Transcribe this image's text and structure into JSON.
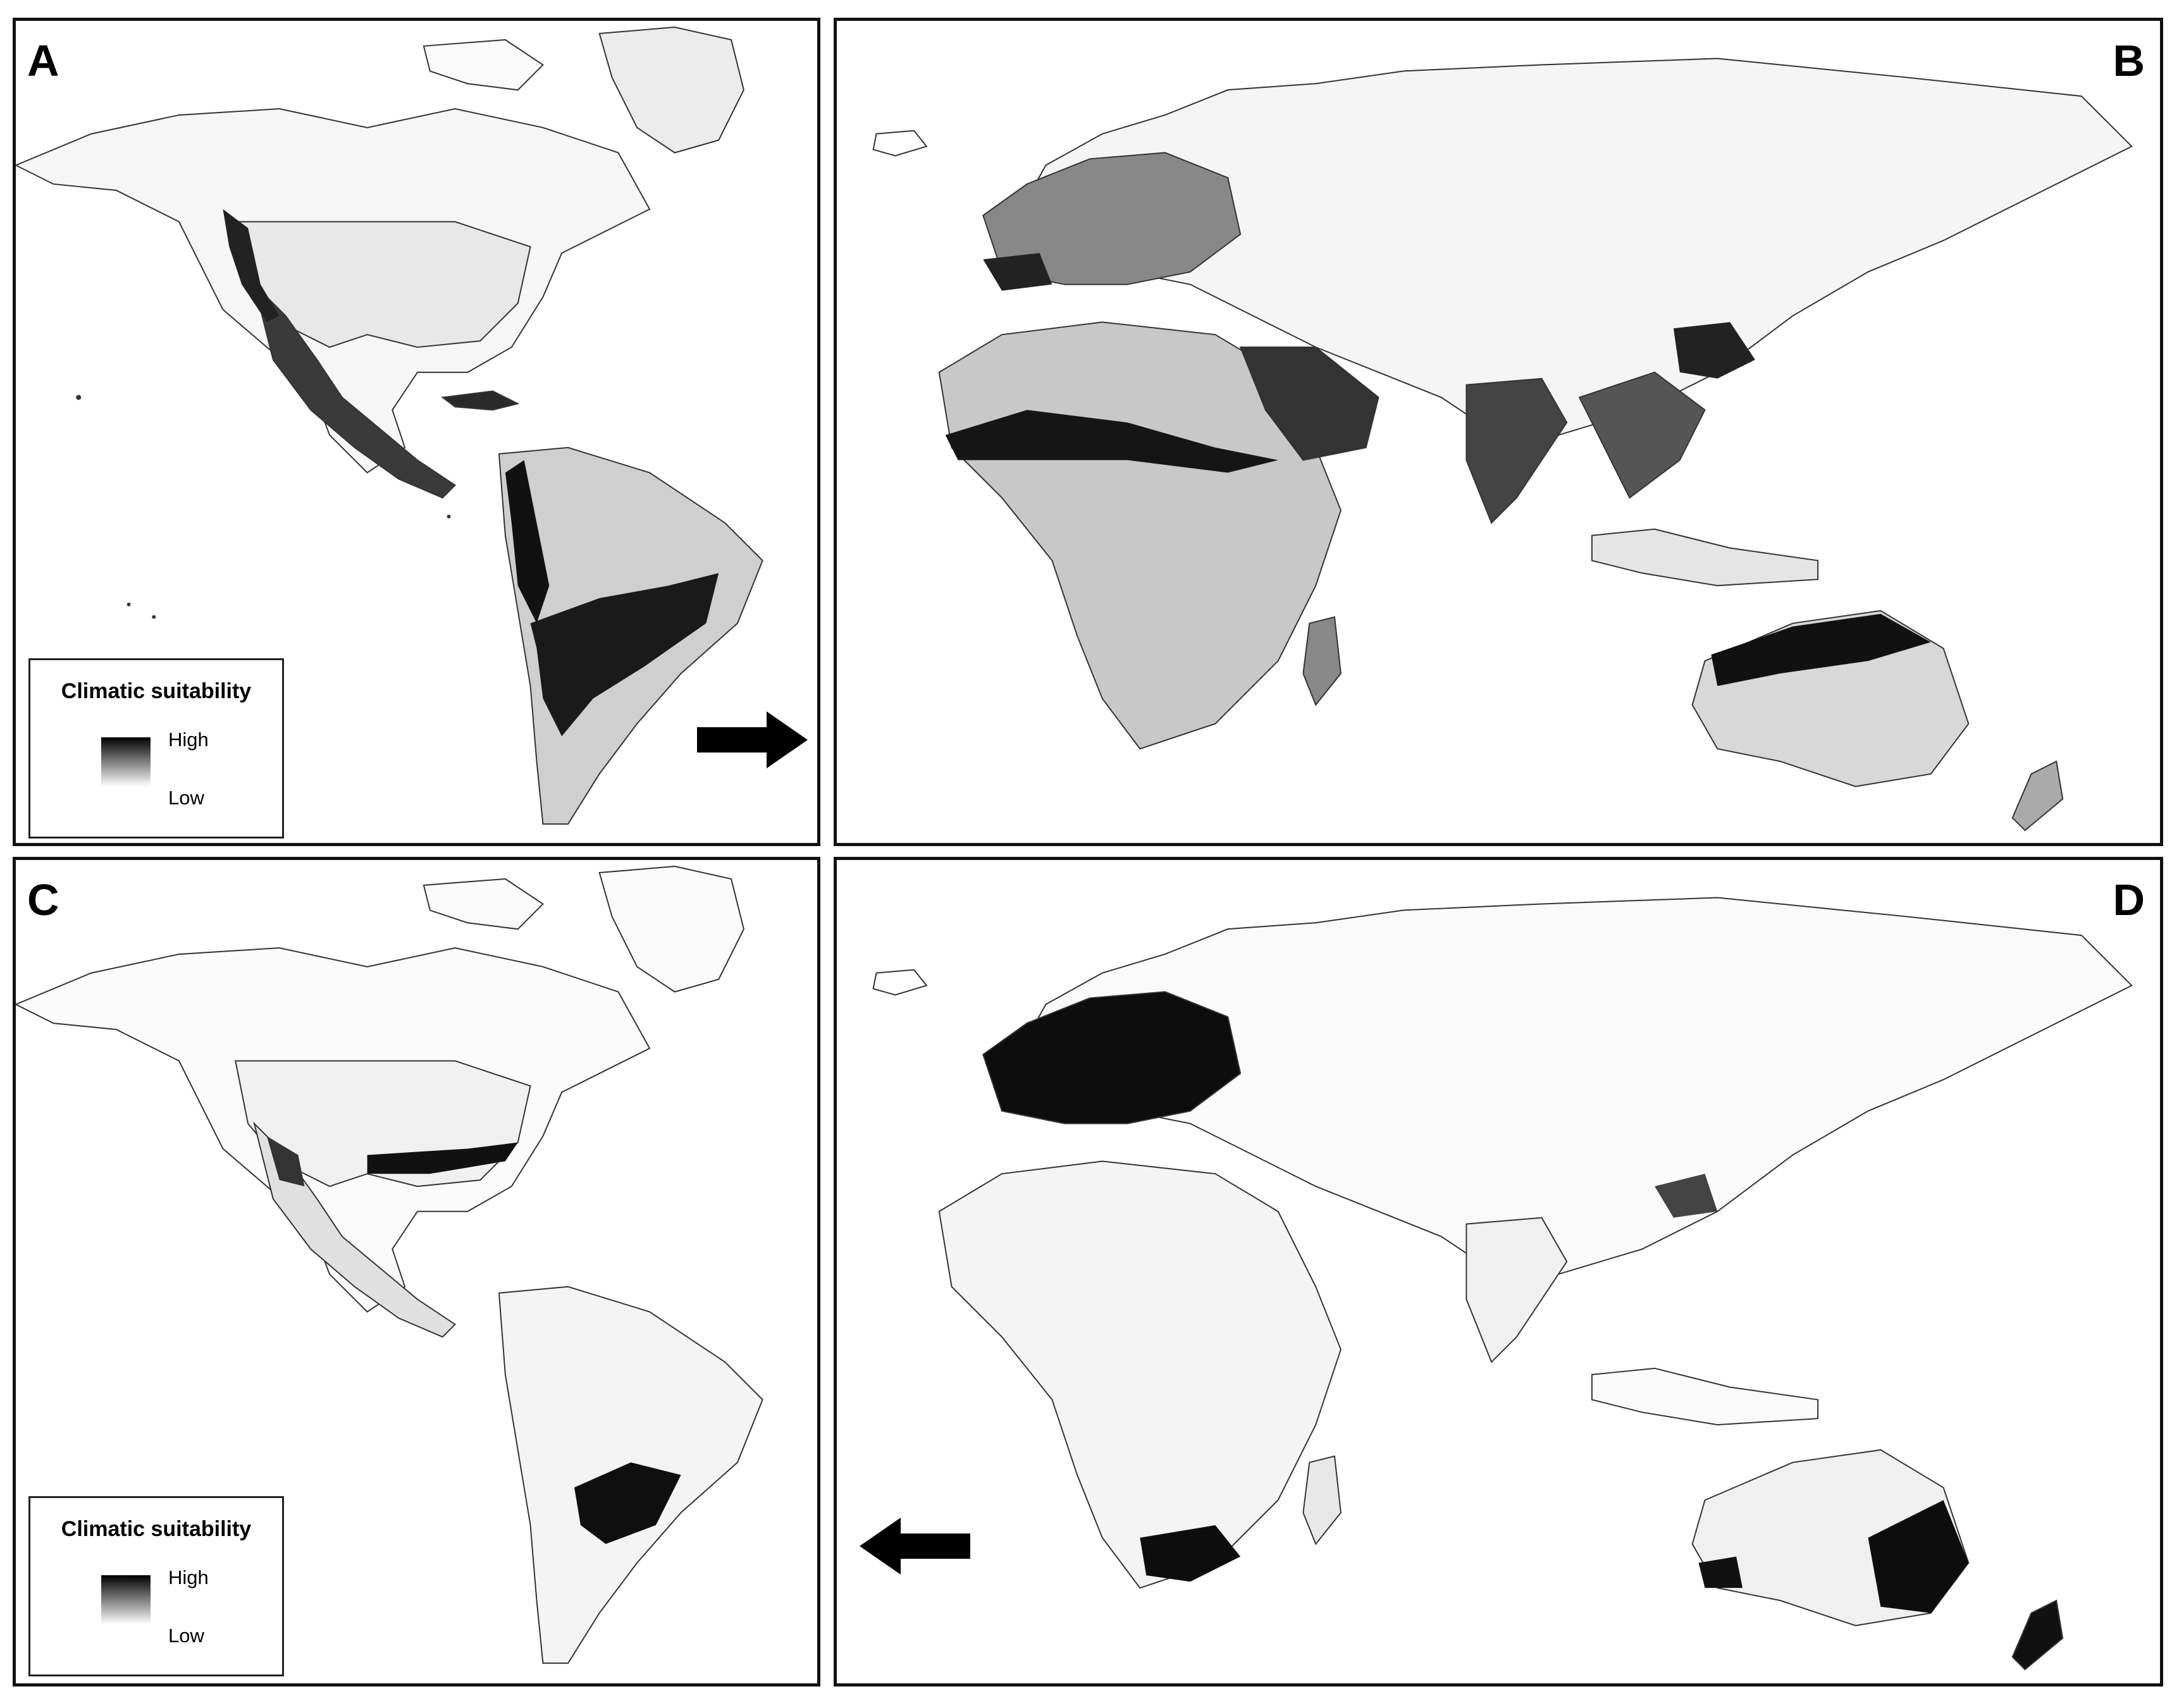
{
  "figure": {
    "panels": [
      {
        "id": "A",
        "label": "A",
        "region": "Americas",
        "scenario": "panel-A"
      },
      {
        "id": "B",
        "label": "B",
        "region": "Europe, Africa, Asia, Oceania",
        "scenario": "panel-B"
      },
      {
        "id": "C",
        "label": "C",
        "region": "Americas",
        "scenario": "panel-C"
      },
      {
        "id": "D",
        "label": "D",
        "region": "Europe, Africa, Asia, Oceania",
        "scenario": "panel-D"
      }
    ],
    "legend": {
      "title": "Climatic suitability",
      "high_label": "High",
      "low_label": "Low",
      "ramp_colors": [
        "#000000",
        "#ffffff"
      ]
    },
    "arrows": [
      {
        "panel": "A",
        "direction": "right"
      },
      {
        "panel": "D",
        "direction": "left"
      }
    ],
    "colors": {
      "high_suitability": "#0a0a0a",
      "medium_suitability": "#7a7a7a",
      "low_suitability": "#eeeeee",
      "border": "#111111",
      "country_lines": "#555555"
    }
  }
}
